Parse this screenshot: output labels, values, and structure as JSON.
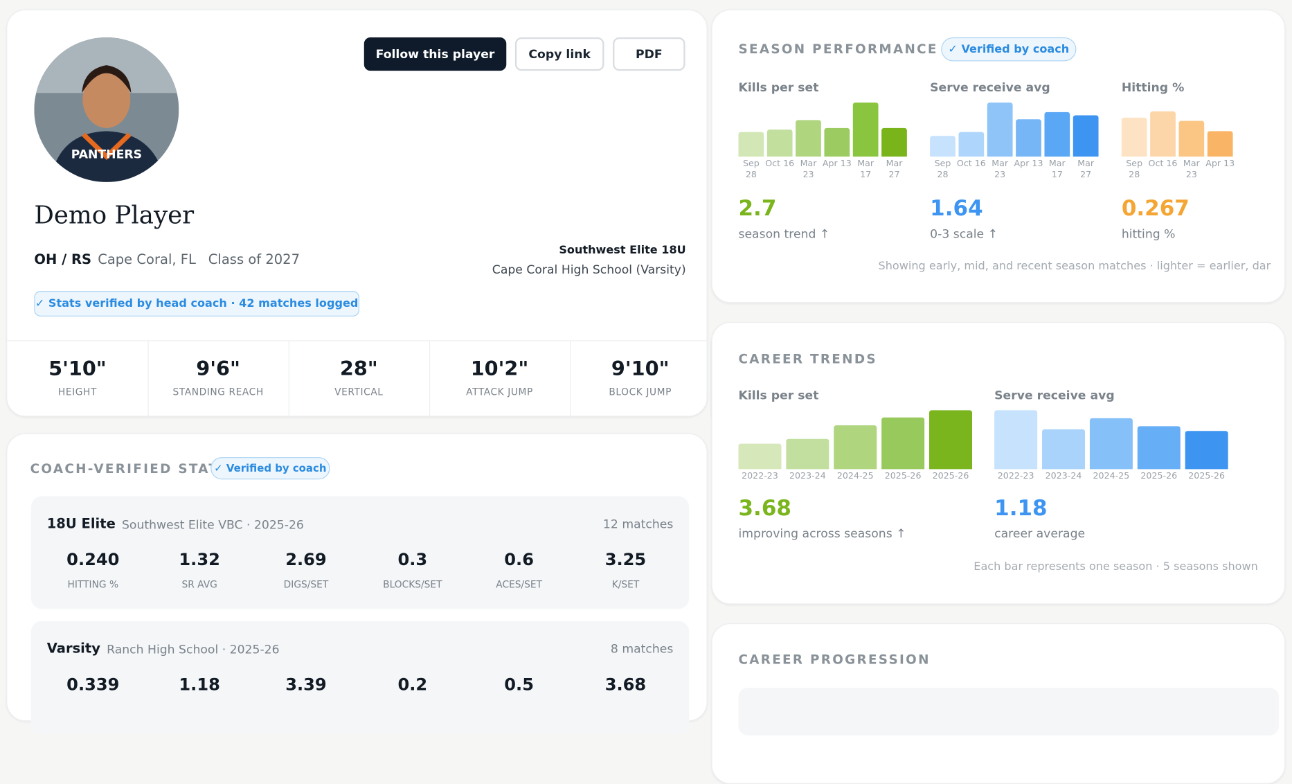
{
  "profile": {
    "buttons": [
      "Follow this player",
      "Copy link",
      "PDF"
    ],
    "name": "Demo Player",
    "position": "OH / RS",
    "location": "Cape Coral, FL",
    "class": "Class of 2027",
    "team": "Southwest Elite 18U",
    "school": "Cape Coral High School (Varsity)",
    "badge": "✓ Stats verified by head coach · 42 matches logged",
    "measurements": [
      {
        "value": "5'10\"",
        "label": "HEIGHT"
      },
      {
        "value": "9'6\"",
        "label": "STANDING REACH"
      },
      {
        "value": "28\"",
        "label": "VERTICAL"
      },
      {
        "value": "10'2\"",
        "label": "ATTACK JUMP"
      },
      {
        "value": "9'10\"",
        "label": "BLOCK JUMP"
      }
    ]
  },
  "coach_stats": {
    "title": "COACH-VERIFIED STATS",
    "badge": "✓ Verified by coach",
    "teams": [
      {
        "level": "18U Elite",
        "org": "Southwest Elite VBC · 2025-26",
        "matches": "12 matches",
        "stats": [
          {
            "value": "0.240",
            "label": "HITTING %"
          },
          {
            "value": "1.32",
            "label": "SR AVG"
          },
          {
            "value": "2.69",
            "label": "DIGS/SET"
          },
          {
            "value": "0.3",
            "label": "BLOCKS/SET"
          },
          {
            "value": "0.6",
            "label": "ACES/SET"
          },
          {
            "value": "3.25",
            "label": "K/SET"
          }
        ]
      },
      {
        "level": "Varsity",
        "org": "Ranch High School · 2025-26",
        "matches": "8 matches",
        "stats": [
          {
            "value": "0.339"
          },
          {
            "value": "1.18"
          },
          {
            "value": "3.39"
          },
          {
            "value": "0.2"
          },
          {
            "value": "0.5"
          },
          {
            "value": "3.68"
          }
        ]
      }
    ]
  },
  "season": {
    "title": "SEASON PERFORMANCE",
    "badge": "✓ Verified by coach",
    "footnote": "Showing early, mid, and recent season matches · lighter = earlier, dar",
    "charts": [
      {
        "title": "Kills per set",
        "categories": [
          "Sep 28",
          "Oct 16",
          "Mar 23",
          "Apr 13",
          "Mar 17",
          "Mar 27"
        ],
        "values": [
          31,
          34,
          46,
          36,
          68,
          36
        ],
        "colors": [
          "#d3e6b5",
          "#c2df9e",
          "#afd57f",
          "#9ccb62",
          "#8ac53f",
          "#79b41b"
        ],
        "value": "2.7",
        "value_color": "#7ab51d",
        "note": "season trend ↑"
      },
      {
        "title": "Serve receive avg",
        "categories": [
          "Sep 28",
          "Oct 16",
          "Mar 23",
          "Apr 13",
          "Mar 17",
          "Mar 27"
        ],
        "values": [
          26,
          31,
          68,
          47,
          56,
          52
        ],
        "colors": [
          "#c6e2fd",
          "#aed5fb",
          "#8ec4f8",
          "#76b6f7",
          "#5aa7f5",
          "#3d95f1"
        ],
        "value": "1.64",
        "value_color": "#3d95f1",
        "note": "0-3 scale ↑"
      },
      {
        "title": "Hitting %",
        "categories": [
          "Sep 28",
          "Oct 16",
          "Mar 23",
          "Apr 13"
        ],
        "values": [
          49,
          57,
          45,
          32
        ],
        "colors": [
          "#fde3c4",
          "#fcd6a8",
          "#fbc683",
          "#f9b565"
        ],
        "value": "0.267",
        "value_color": "#f5a533",
        "note": "hitting %"
      }
    ]
  },
  "career": {
    "title": "CAREER TRENDS",
    "footnote": "Each bar represents one season · 5 seasons shown",
    "charts": [
      {
        "title": "Kills per set",
        "categories": [
          "2022-23",
          "2023-24",
          "2024-25",
          "2025-26",
          "2025-26"
        ],
        "values": [
          32,
          38,
          55,
          65,
          74
        ],
        "colors": [
          "#d6e8ba",
          "#c3df9f",
          "#afd57f",
          "#98c95c",
          "#7ab51d"
        ],
        "value": "3.68",
        "value_color": "#7ab51d",
        "note": "improving across seasons ↑"
      },
      {
        "title": "Serve receive avg",
        "categories": [
          "2022-23",
          "2023-24",
          "2024-25",
          "2025-26",
          "2025-26"
        ],
        "values": [
          74,
          50,
          64,
          54,
          48
        ],
        "colors": [
          "#c6e2fd",
          "#a9d3fb",
          "#86c0f8",
          "#66aef6",
          "#3d95f1"
        ],
        "value": "1.18",
        "value_color": "#3d95f1",
        "note": "career average"
      }
    ]
  },
  "progression": {
    "title": "CAREER PROGRESSION"
  }
}
